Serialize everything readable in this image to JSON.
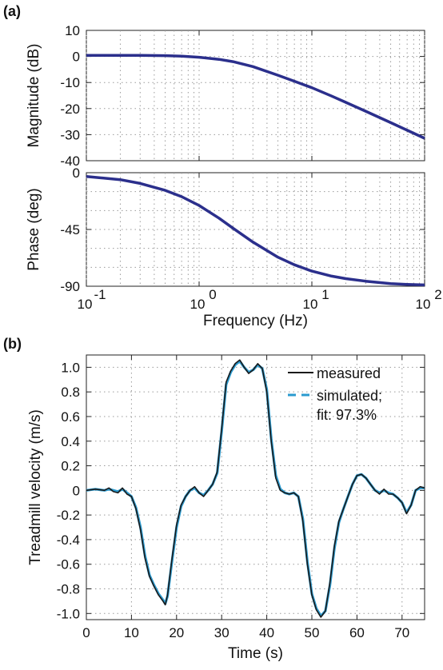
{
  "panel_a_label": "(a)",
  "panel_b_label": "(b)",
  "colors": {
    "line_a": "#2B2F8C",
    "measured": "#1a1a1a",
    "simulated": "#2A9ACF",
    "grid": "#9a9a9a"
  },
  "chart_data": [
    {
      "type": "line",
      "xscale": "log",
      "xlim": [
        0.1,
        100
      ],
      "ylim": [
        -40,
        10
      ],
      "ylabel": "Magnitude (dB)",
      "xlabel": "",
      "yticks": [
        10,
        0,
        -10,
        -20,
        -30,
        -40
      ],
      "ytick_labels": [
        "10",
        "0",
        "-10",
        "-20",
        "-30",
        "-40"
      ],
      "grid": true,
      "series": [
        {
          "name": "",
          "x": [
            0.1,
            0.2,
            0.3,
            0.5,
            0.7,
            1,
            1.5,
            2,
            3,
            5,
            7,
            10,
            15,
            20,
            30,
            50,
            70,
            100
          ],
          "values": [
            0.4,
            0.4,
            0.4,
            0.3,
            0.1,
            -0.3,
            -1.1,
            -2.0,
            -3.9,
            -7.2,
            -9.5,
            -12.0,
            -15.2,
            -17.6,
            -21.0,
            -25.4,
            -28.3,
            -31.4
          ]
        }
      ]
    },
    {
      "type": "line",
      "xscale": "log",
      "xlim": [
        0.1,
        100
      ],
      "ylim": [
        -90,
        0
      ],
      "ylabel": "Phase (deg)",
      "xlabel": "Frequency  (Hz)",
      "xtick_labels": [
        "10",
        "10",
        "10",
        "10"
      ],
      "xtick_exponents": [
        "-1",
        "0",
        "1",
        "2"
      ],
      "yticks": [
        0,
        -45,
        -90
      ],
      "ytick_labels": [
        "0",
        "-45",
        "-90"
      ],
      "grid": true,
      "series": [
        {
          "name": "",
          "x": [
            0.1,
            0.2,
            0.3,
            0.5,
            0.7,
            1,
            1.5,
            2,
            3,
            5,
            7,
            10,
            15,
            20,
            30,
            50,
            70,
            100
          ],
          "values": [
            -3,
            -5.5,
            -8.5,
            -14,
            -19,
            -26,
            -36,
            -44,
            -55,
            -67,
            -73,
            -78,
            -82,
            -84,
            -86,
            -88,
            -88.6,
            -89
          ]
        }
      ]
    },
    {
      "type": "line",
      "xlim": [
        0,
        75
      ],
      "ylim": [
        -1.05,
        1.1
      ],
      "xlabel": "Time (s)",
      "ylabel": "Treadmill velocity (m/s)",
      "xticks": [
        0,
        10,
        20,
        30,
        40,
        50,
        60,
        70
      ],
      "xtick_labels": [
        "0",
        "10",
        "20",
        "30",
        "40",
        "50",
        "60",
        "70"
      ],
      "yticks": [
        1.0,
        0.8,
        0.6,
        0.4,
        0.2,
        0,
        -0.2,
        -0.4,
        -0.6,
        -0.8,
        -1.0
      ],
      "ytick_labels": [
        "1.0",
        "0.8",
        "0.6",
        "0.4",
        "0.2",
        "0",
        "-0.2",
        "-0.4",
        "-0.6",
        "-0.8",
        "-1.0"
      ],
      "grid": true,
      "legend_position": "top-right",
      "series": [
        {
          "name": "measured",
          "x": [
            0,
            2,
            4,
            5,
            6,
            7,
            8,
            9,
            10,
            11,
            12,
            13,
            14,
            15,
            16,
            17,
            17.5,
            18,
            19,
            20,
            21,
            22,
            23,
            24,
            25,
            26,
            27,
            28,
            29,
            30,
            31,
            32,
            33,
            34,
            35,
            36,
            37,
            38,
            39,
            40,
            41,
            42,
            43,
            44,
            45,
            46,
            47,
            48,
            49,
            50,
            51,
            52,
            53,
            54,
            55,
            56,
            57,
            58,
            59,
            60,
            61,
            62,
            63,
            64,
            65,
            66,
            67,
            68,
            69,
            70,
            71,
            72,
            73,
            74,
            75
          ],
          "values": [
            0,
            0.01,
            0,
            0.02,
            -0.01,
            -0.02,
            0.02,
            -0.03,
            -0.05,
            -0.15,
            -0.32,
            -0.55,
            -0.7,
            -0.78,
            -0.85,
            -0.9,
            -0.93,
            -0.85,
            -0.55,
            -0.28,
            -0.12,
            -0.05,
            0.0,
            0.03,
            -0.02,
            -0.05,
            0.0,
            0.05,
            0.15,
            0.5,
            0.88,
            0.97,
            1.03,
            1.06,
            1.0,
            0.95,
            0.98,
            1.03,
            0.99,
            0.8,
            0.4,
            0.1,
            0.0,
            -0.02,
            -0.03,
            -0.02,
            -0.05,
            -0.25,
            -0.6,
            -0.85,
            -0.97,
            -1.03,
            -0.98,
            -0.75,
            -0.45,
            -0.25,
            -0.15,
            -0.05,
            0.05,
            0.12,
            0.13,
            0.1,
            0.05,
            0.0,
            -0.03,
            0.01,
            -0.03,
            -0.03,
            -0.06,
            -0.1,
            -0.19,
            -0.12,
            0.0,
            0.03,
            0.02
          ]
        },
        {
          "name": "simulated;",
          "x": [
            0,
            2,
            4,
            5,
            6,
            7,
            8,
            9,
            10,
            11,
            12,
            13,
            14,
            15,
            16,
            17,
            17.5,
            18,
            19,
            20,
            21,
            22,
            23,
            24,
            25,
            26,
            27,
            28,
            29,
            30,
            31,
            32,
            33,
            34,
            35,
            36,
            37,
            38,
            39,
            40,
            41,
            42,
            43,
            44,
            45,
            46,
            47,
            48,
            49,
            50,
            51,
            52,
            53,
            54,
            55,
            56,
            57,
            58,
            59,
            60,
            61,
            62,
            63,
            64,
            65,
            66,
            67,
            68,
            69,
            70,
            71,
            72,
            73,
            74,
            75
          ],
          "values": [
            0,
            0.01,
            0,
            0.01,
            0,
            -0.01,
            0.01,
            -0.02,
            -0.05,
            -0.14,
            -0.3,
            -0.53,
            -0.69,
            -0.77,
            -0.84,
            -0.89,
            -0.92,
            -0.86,
            -0.57,
            -0.3,
            -0.13,
            -0.05,
            0.0,
            0.02,
            -0.02,
            -0.04,
            0.0,
            0.05,
            0.14,
            0.48,
            0.86,
            0.96,
            1.02,
            1.05,
            1.0,
            0.96,
            0.98,
            1.02,
            0.99,
            0.82,
            0.42,
            0.12,
            0.01,
            -0.02,
            -0.03,
            -0.02,
            -0.05,
            -0.23,
            -0.58,
            -0.84,
            -0.96,
            -1.02,
            -0.98,
            -0.77,
            -0.47,
            -0.26,
            -0.15,
            -0.05,
            0.05,
            0.12,
            0.13,
            0.1,
            0.05,
            0.0,
            -0.02,
            0.0,
            -0.02,
            -0.03,
            -0.06,
            -0.1,
            -0.18,
            -0.12,
            0.0,
            0.02,
            0.02
          ]
        }
      ],
      "legend": {
        "measured": "measured",
        "simulated": "simulated;",
        "fit": "fit: 97.3%"
      }
    }
  ]
}
